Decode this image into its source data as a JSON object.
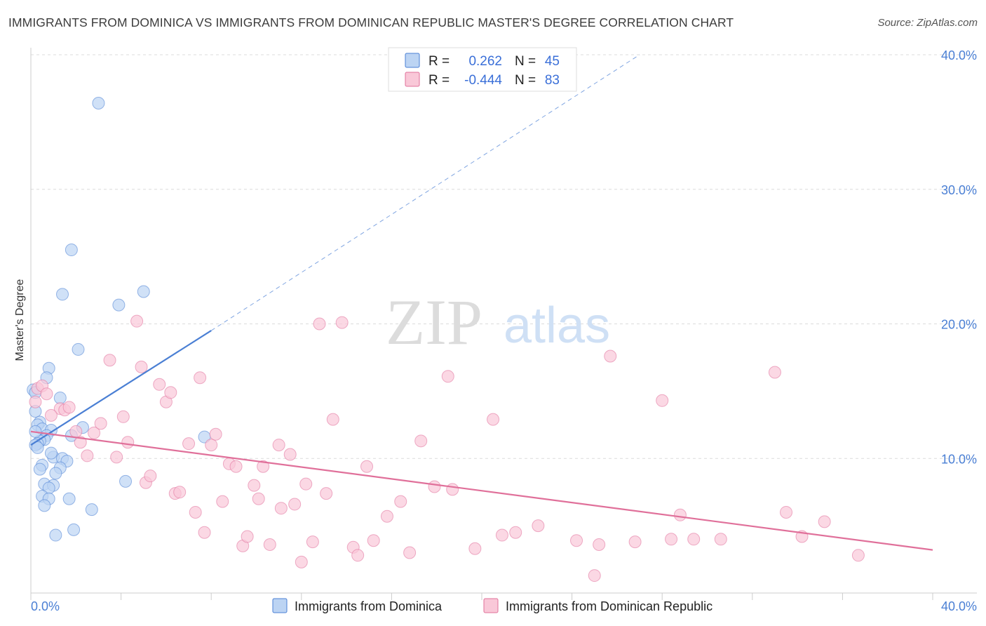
{
  "title": "IMMIGRANTS FROM DOMINICA VS IMMIGRANTS FROM DOMINICAN REPUBLIC MASTER'S DEGREE CORRELATION CHART",
  "source": "Source: ZipAtlas.com",
  "watermark": {
    "zip": "ZIP",
    "atlas": "atlas"
  },
  "legend_box": {
    "rows": [
      {
        "r_label": "R =",
        "r_value": "0.262",
        "n_label": "N =",
        "n_value": "45",
        "color": "#aecbf0"
      },
      {
        "r_label": "R =",
        "r_value": "-0.444",
        "n_label": "N =",
        "n_value": "83",
        "color": "#f7bcd0"
      }
    ]
  },
  "chart_data": {
    "type": "scatter",
    "ylabel": "Master's Degree",
    "xlim": [
      0,
      40
    ],
    "ylim": [
      0,
      40
    ],
    "y_ticks": [
      {
        "value": 10,
        "label": "10.0%"
      },
      {
        "value": 20,
        "label": "20.0%"
      },
      {
        "value": 30,
        "label": "30.0%"
      },
      {
        "value": 40,
        "label": "40.0%"
      }
    ],
    "x_tick_labels": {
      "min": "0.0%",
      "max": "40.0%"
    },
    "grid": true,
    "series": [
      {
        "name": "Immigrants from Dominica",
        "color": "#4a7fd4",
        "fill": "#bcd4f3",
        "trend": {
          "x0": 0,
          "y0": 11.0,
          "x1": 8.0,
          "y1": 19.5,
          "dash_to_x": 27,
          "dash_to_y": 40.0
        },
        "points": [
          [
            3.0,
            36.4
          ],
          [
            1.8,
            25.5
          ],
          [
            1.4,
            22.2
          ],
          [
            5.0,
            22.4
          ],
          [
            3.9,
            21.4
          ],
          [
            2.1,
            18.1
          ],
          [
            0.8,
            16.7
          ],
          [
            0.7,
            16.0
          ],
          [
            0.1,
            15.1
          ],
          [
            0.2,
            14.9
          ],
          [
            1.3,
            14.5
          ],
          [
            0.2,
            13.5
          ],
          [
            0.4,
            12.7
          ],
          [
            0.3,
            12.5
          ],
          [
            0.5,
            12.2
          ],
          [
            0.9,
            12.1
          ],
          [
            2.3,
            12.3
          ],
          [
            0.7,
            11.7
          ],
          [
            1.8,
            11.7
          ],
          [
            7.7,
            11.6
          ],
          [
            0.6,
            11.4
          ],
          [
            0.4,
            11.3
          ],
          [
            0.3,
            11.1
          ],
          [
            0.2,
            11.0
          ],
          [
            1.0,
            10.1
          ],
          [
            1.4,
            10.0
          ],
          [
            1.6,
            9.8
          ],
          [
            0.5,
            9.5
          ],
          [
            1.3,
            9.3
          ],
          [
            0.4,
            9.2
          ],
          [
            1.1,
            8.9
          ],
          [
            0.6,
            8.1
          ],
          [
            1.0,
            8.0
          ],
          [
            4.2,
            8.3
          ],
          [
            0.8,
            7.8
          ],
          [
            0.5,
            7.2
          ],
          [
            1.7,
            7.0
          ],
          [
            0.8,
            7.0
          ],
          [
            0.6,
            6.5
          ],
          [
            2.7,
            6.2
          ],
          [
            1.9,
            4.7
          ],
          [
            1.1,
            4.3
          ],
          [
            0.3,
            10.8
          ],
          [
            0.9,
            10.4
          ],
          [
            0.2,
            12.0
          ]
        ]
      },
      {
        "name": "Immigrants from Dominican Republic",
        "color": "#e0709a",
        "fill": "#f9c8d8",
        "trend": {
          "x0": 0,
          "y0": 12.0,
          "x1": 40,
          "y1": 3.2
        },
        "points": [
          [
            0.3,
            15.2
          ],
          [
            0.5,
            15.4
          ],
          [
            0.7,
            14.8
          ],
          [
            0.2,
            14.2
          ],
          [
            1.3,
            13.7
          ],
          [
            1.5,
            13.6
          ],
          [
            1.7,
            13.8
          ],
          [
            0.9,
            13.2
          ],
          [
            2.0,
            12.0
          ],
          [
            2.2,
            11.2
          ],
          [
            2.5,
            10.2
          ],
          [
            2.8,
            11.9
          ],
          [
            3.1,
            12.6
          ],
          [
            3.5,
            17.3
          ],
          [
            3.8,
            10.1
          ],
          [
            4.1,
            13.1
          ],
          [
            4.3,
            11.2
          ],
          [
            4.7,
            20.2
          ],
          [
            4.9,
            16.8
          ],
          [
            5.1,
            8.2
          ],
          [
            5.3,
            8.7
          ],
          [
            5.7,
            15.5
          ],
          [
            6.0,
            14.2
          ],
          [
            6.2,
            14.9
          ],
          [
            6.4,
            7.4
          ],
          [
            6.6,
            7.5
          ],
          [
            7.0,
            11.1
          ],
          [
            7.3,
            6.0
          ],
          [
            7.5,
            16.0
          ],
          [
            7.7,
            4.5
          ],
          [
            8.0,
            11.0
          ],
          [
            8.2,
            11.8
          ],
          [
            8.5,
            6.8
          ],
          [
            8.8,
            9.6
          ],
          [
            9.1,
            9.4
          ],
          [
            9.4,
            3.5
          ],
          [
            9.6,
            4.2
          ],
          [
            9.9,
            8.0
          ],
          [
            10.1,
            7.0
          ],
          [
            10.3,
            9.4
          ],
          [
            10.6,
            3.6
          ],
          [
            11.0,
            11.0
          ],
          [
            11.1,
            6.3
          ],
          [
            11.5,
            10.3
          ],
          [
            11.7,
            6.6
          ],
          [
            12.0,
            2.3
          ],
          [
            12.2,
            8.1
          ],
          [
            12.5,
            3.8
          ],
          [
            12.8,
            20.0
          ],
          [
            13.1,
            7.4
          ],
          [
            13.4,
            12.9
          ],
          [
            13.8,
            20.1
          ],
          [
            14.3,
            3.4
          ],
          [
            14.5,
            2.8
          ],
          [
            14.9,
            9.4
          ],
          [
            15.2,
            3.9
          ],
          [
            15.8,
            5.7
          ],
          [
            16.4,
            6.8
          ],
          [
            16.8,
            3.0
          ],
          [
            17.3,
            11.3
          ],
          [
            17.9,
            7.9
          ],
          [
            18.5,
            16.1
          ],
          [
            18.7,
            7.7
          ],
          [
            19.7,
            3.3
          ],
          [
            20.5,
            12.9
          ],
          [
            20.9,
            4.3
          ],
          [
            21.5,
            4.5
          ],
          [
            22.5,
            5.0
          ],
          [
            24.2,
            3.9
          ],
          [
            25.0,
            1.3
          ],
          [
            25.2,
            3.6
          ],
          [
            25.7,
            17.6
          ],
          [
            26.8,
            3.8
          ],
          [
            28.0,
            14.3
          ],
          [
            28.4,
            4.0
          ],
          [
            28.8,
            5.8
          ],
          [
            29.4,
            4.0
          ],
          [
            30.6,
            4.0
          ],
          [
            33.0,
            16.4
          ],
          [
            33.5,
            6.0
          ],
          [
            34.2,
            4.2
          ],
          [
            35.2,
            5.3
          ],
          [
            36.7,
            2.8
          ]
        ]
      }
    ]
  }
}
